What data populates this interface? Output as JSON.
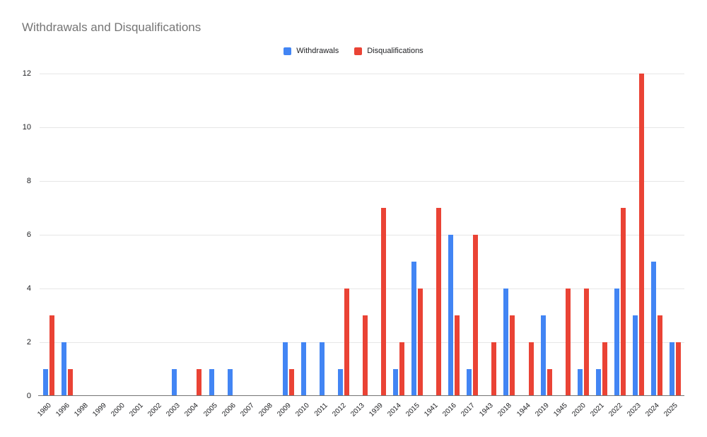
{
  "header": {
    "title": "Withdrawals and Disqualifications",
    "title_color": "#757575"
  },
  "legend": {
    "items": [
      {
        "label": "Withdrawals",
        "color": "#4285F4"
      },
      {
        "label": "Disqualifications",
        "color": "#EA4335"
      }
    ]
  },
  "chart_data": {
    "type": "bar",
    "title": "Withdrawals and Disqualifications",
    "categories": [
      "1980",
      "1996",
      "1998",
      "1999",
      "2000",
      "2001",
      "2002",
      "2003",
      "2004",
      "2005",
      "2006",
      "2007",
      "2008",
      "2009",
      "2010",
      "2011",
      "2012",
      "2013",
      "1939",
      "2014",
      "2015",
      "1941",
      "2016",
      "2017",
      "1943",
      "2018",
      "1944",
      "2019",
      "1945",
      "2020",
      "2021",
      "2022",
      "2023",
      "2024",
      "2025"
    ],
    "series": [
      {
        "name": "Withdrawals",
        "color": "#4285F4",
        "values": [
          1,
          2,
          0,
          0,
          0,
          0,
          0,
          1,
          0,
          1,
          1,
          0,
          0,
          2,
          2,
          2,
          1,
          0,
          0,
          1,
          5,
          0,
          6,
          1,
          0,
          4,
          0,
          3,
          0,
          1,
          1,
          4,
          3,
          5,
          2
        ]
      },
      {
        "name": "Disqualifications",
        "color": "#EA4335",
        "values": [
          3,
          1,
          0,
          0,
          0,
          0,
          0,
          0,
          1,
          0,
          0,
          0,
          0,
          1,
          0,
          0,
          4,
          3,
          7,
          2,
          4,
          7,
          3,
          6,
          2,
          3,
          2,
          1,
          4,
          4,
          2,
          7,
          12,
          3,
          2
        ]
      }
    ],
    "xlabel": "",
    "ylabel": "",
    "ylim": [
      0,
      12
    ],
    "yticks": [
      0,
      2,
      4,
      6,
      8,
      10,
      12
    ],
    "grid": true,
    "legend_position": "top-center",
    "axis_line_color": "#757575",
    "gridline_color": "#e6e6e6",
    "tick_label_color": "#202124"
  }
}
